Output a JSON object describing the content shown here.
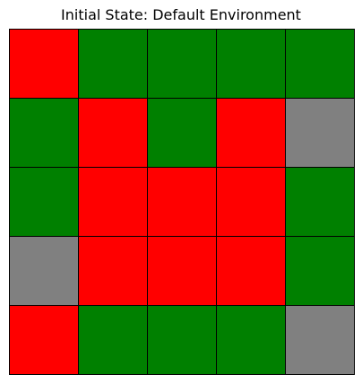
{
  "title": "Initial State: Default Environment",
  "grid": {
    "rows": 5,
    "cols": 5,
    "colors": {
      "green": "#008000",
      "red": "#ff0000",
      "gray": "#808080",
      "gridline": "#000000"
    },
    "cells": [
      [
        "red",
        "green",
        "green",
        "green",
        "green"
      ],
      [
        "green",
        "red",
        "green",
        "red",
        "gray"
      ],
      [
        "green",
        "red",
        "red",
        "red",
        "green"
      ],
      [
        "gray",
        "red",
        "red",
        "red",
        "green"
      ],
      [
        "red",
        "green",
        "green",
        "green",
        "gray"
      ]
    ]
  }
}
